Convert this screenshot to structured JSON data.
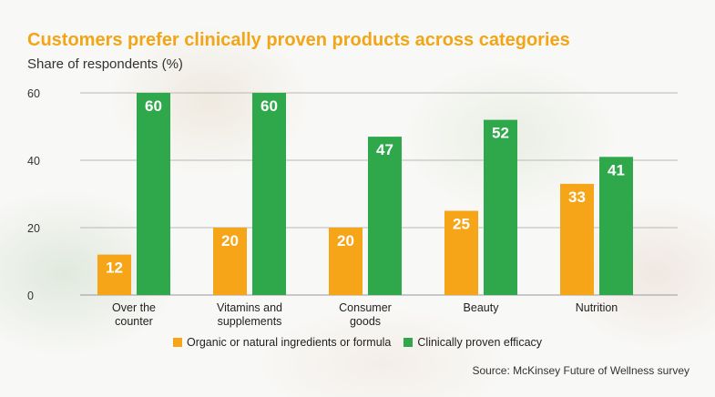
{
  "title": "Customers prefer clinically proven products across categories",
  "subtitle": "Share of respondents (%)",
  "source": "Source: McKinsey Future of Wellness survey",
  "colors": {
    "organic": "#f6a518",
    "clinical": "#2ea84a",
    "title": "#f2a516"
  },
  "chart_data": {
    "type": "bar",
    "categories": [
      [
        "Over the",
        "counter"
      ],
      [
        "Vitamins and",
        "supplements"
      ],
      [
        "Consumer",
        "goods"
      ],
      [
        "Beauty"
      ],
      [
        "Nutrition"
      ]
    ],
    "series": [
      {
        "name": "Organic or natural ingredients or formula",
        "values": [
          12,
          20,
          20,
          25,
          33
        ]
      },
      {
        "name": "Clinically proven efficacy",
        "values": [
          60,
          60,
          47,
          52,
          41
        ]
      }
    ],
    "ylim": [
      0,
      60
    ],
    "yticks": [
      0,
      20,
      40,
      60
    ],
    "grid": true,
    "legend": "bottom"
  }
}
